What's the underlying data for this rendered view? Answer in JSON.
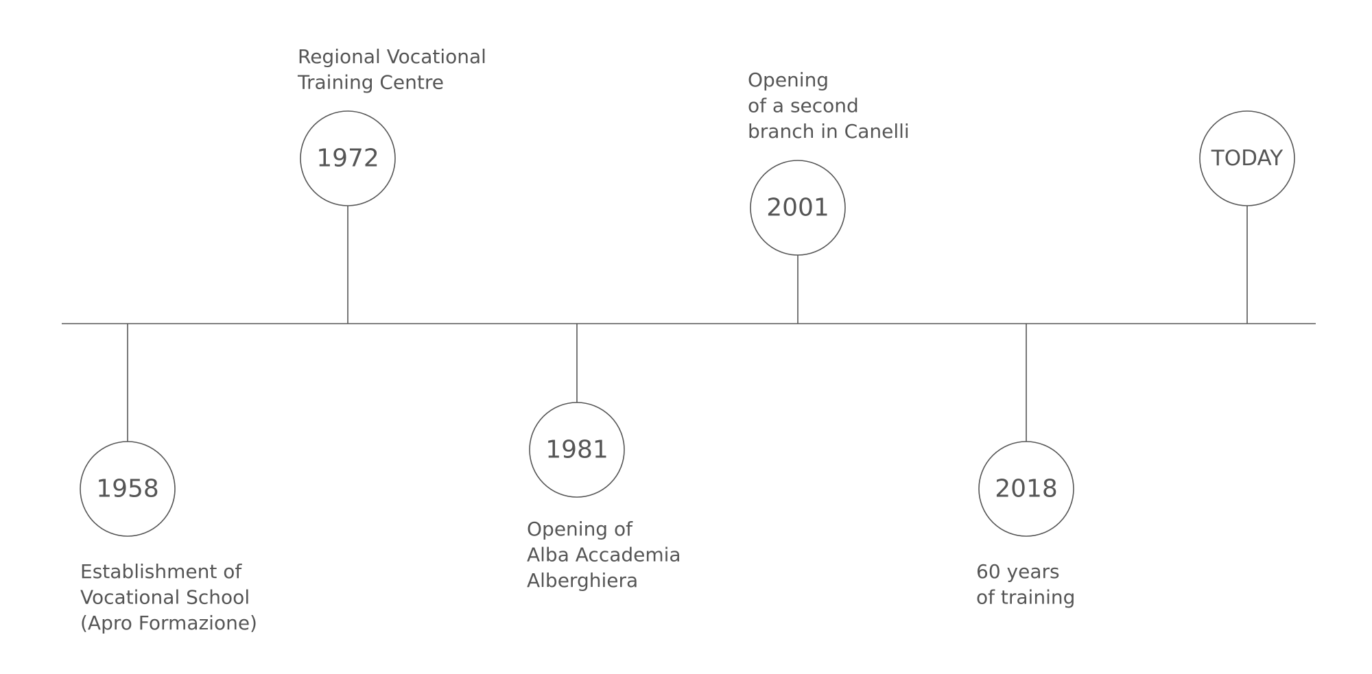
{
  "timeline": {
    "events": [
      {
        "label": "1958",
        "lines": [
          "Establishment of",
          "Vocational School",
          "(Apro Formazione)"
        ]
      },
      {
        "label": "1972",
        "lines": [
          "Regional Vocational",
          "Training Centre"
        ]
      },
      {
        "label": "1981",
        "lines": [
          "Opening of",
          "Alba Accademia",
          "Alberghiera"
        ]
      },
      {
        "label": "2001",
        "lines": [
          "Opening",
          "of a second",
          "branch in Canelli"
        ]
      },
      {
        "label": "2018",
        "lines": [
          "60 years",
          "of training"
        ]
      },
      {
        "label": "TODAY",
        "lines": []
      }
    ]
  },
  "colors": {
    "stroke": "#555555",
    "text": "#555555",
    "background": "#ffffff"
  }
}
